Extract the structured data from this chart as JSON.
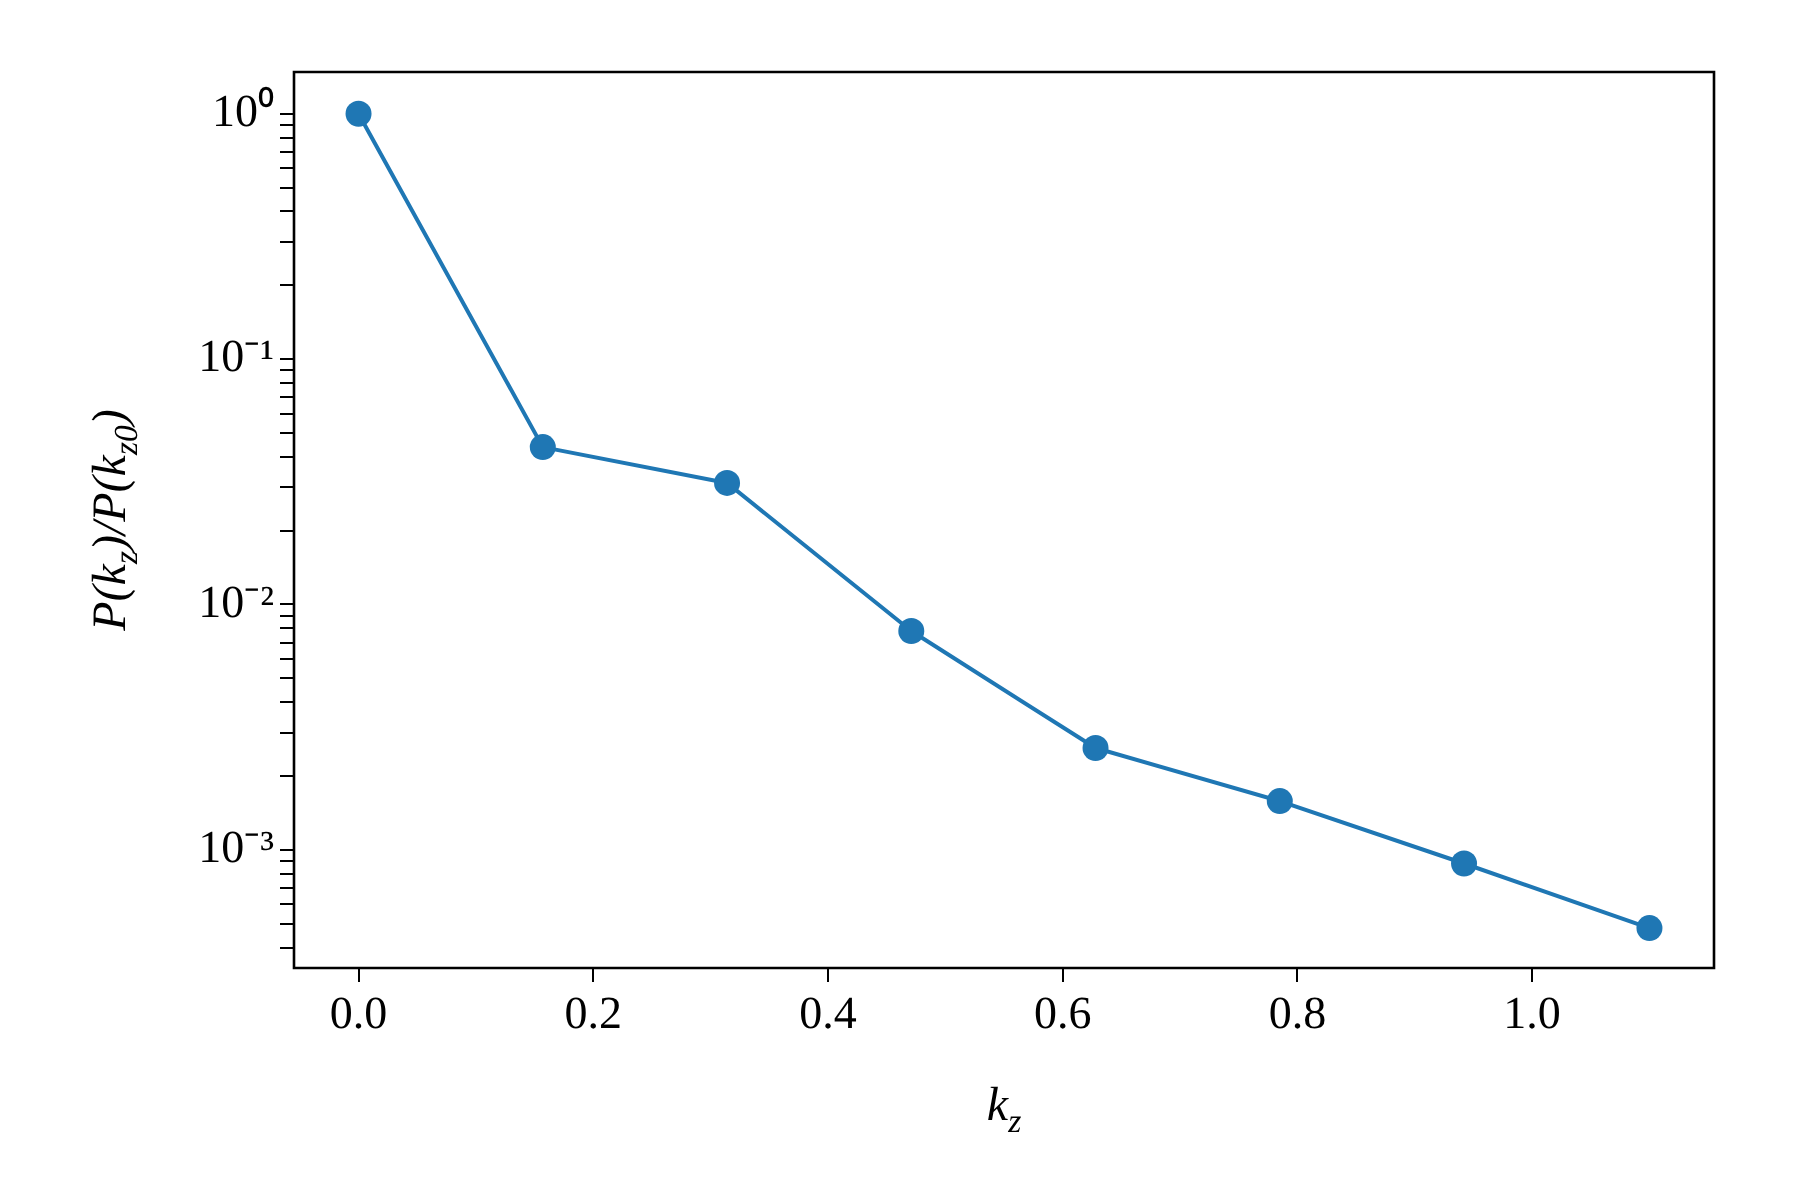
{
  "chart_data": {
    "type": "line",
    "xlabel": "k$_{z}$",
    "ylabel": "P(k$_{z}$)/P(k$_{z0}$)",
    "x": [
      0,
      0.157,
      0.314,
      0.471,
      0.628,
      0.785,
      0.942,
      1.1
    ],
    "series": [
      {
        "color": "#1f77b4",
        "values": [
          1.0,
          0.0438,
          0.0313,
          0.0078,
          0.0026,
          0.00158,
          0.00088,
          0.00048
        ]
      }
    ],
    "log": "y",
    "marker": "circle",
    "line_style": "solid",
    "grid": false,
    "legend": false,
    "xlim": [
      -0.055,
      1.155
    ],
    "xticks": [
      {
        "value": 0.2,
        "label": "0.2"
      },
      {
        "value": 0.4,
        "label": "0.4"
      },
      {
        "value": 0.6,
        "label": "0.6"
      },
      {
        "value": 0.8,
        "label": "0.8"
      },
      {
        "value": 1,
        "label": "1.0"
      },
      {
        "value": 0,
        "label": "0.0"
      }
    ],
    "ylim": [
      0.00033,
      1.48
    ],
    "yticks": [
      {
        "value": 0.001,
        "label": "10⁻³"
      },
      {
        "value": 0.01,
        "label": "10⁻²"
      },
      {
        "value": 0.1,
        "label": "10⁻¹"
      },
      {
        "value": 1,
        "label": "10⁰"
      },
      {
        "value": 0.0004,
        "label": null
      },
      {
        "value": 0.0005,
        "label": null
      },
      {
        "value": 0.0006,
        "label": null
      },
      {
        "value": 0.0007,
        "label": null
      },
      {
        "value": 0.0008,
        "label": null
      },
      {
        "value": 0.0009,
        "label": null
      },
      {
        "value": 0.002,
        "label": null
      },
      {
        "value": 0.003,
        "label": null
      },
      {
        "value": 0.004,
        "label": null
      },
      {
        "value": 0.005,
        "label": null
      },
      {
        "value": 0.006,
        "label": null
      },
      {
        "value": 0.007,
        "label": null
      },
      {
        "value": 0.008,
        "label": null
      },
      {
        "value": 0.009,
        "label": null
      },
      {
        "value": 0.02,
        "label": null
      },
      {
        "value": 0.03,
        "label": null
      },
      {
        "value": 0.04,
        "label": null
      },
      {
        "value": 0.05,
        "label": null
      },
      {
        "value": 0.06,
        "label": null
      },
      {
        "value": 0.07,
        "label": null
      },
      {
        "value": 0.08,
        "label": null
      },
      {
        "value": 0.09,
        "label": null
      },
      {
        "value": 0.2,
        "label": null
      },
      {
        "value": 0.3,
        "label": null
      },
      {
        "value": 0.4,
        "label": null
      },
      {
        "value": 0.5,
        "label": null
      },
      {
        "value": 0.6,
        "label": null
      },
      {
        "value": 0.7,
        "label": null
      },
      {
        "value": 0.8,
        "label": null
      },
      {
        "value": 0.9,
        "label": null
      }
    ]
  }
}
